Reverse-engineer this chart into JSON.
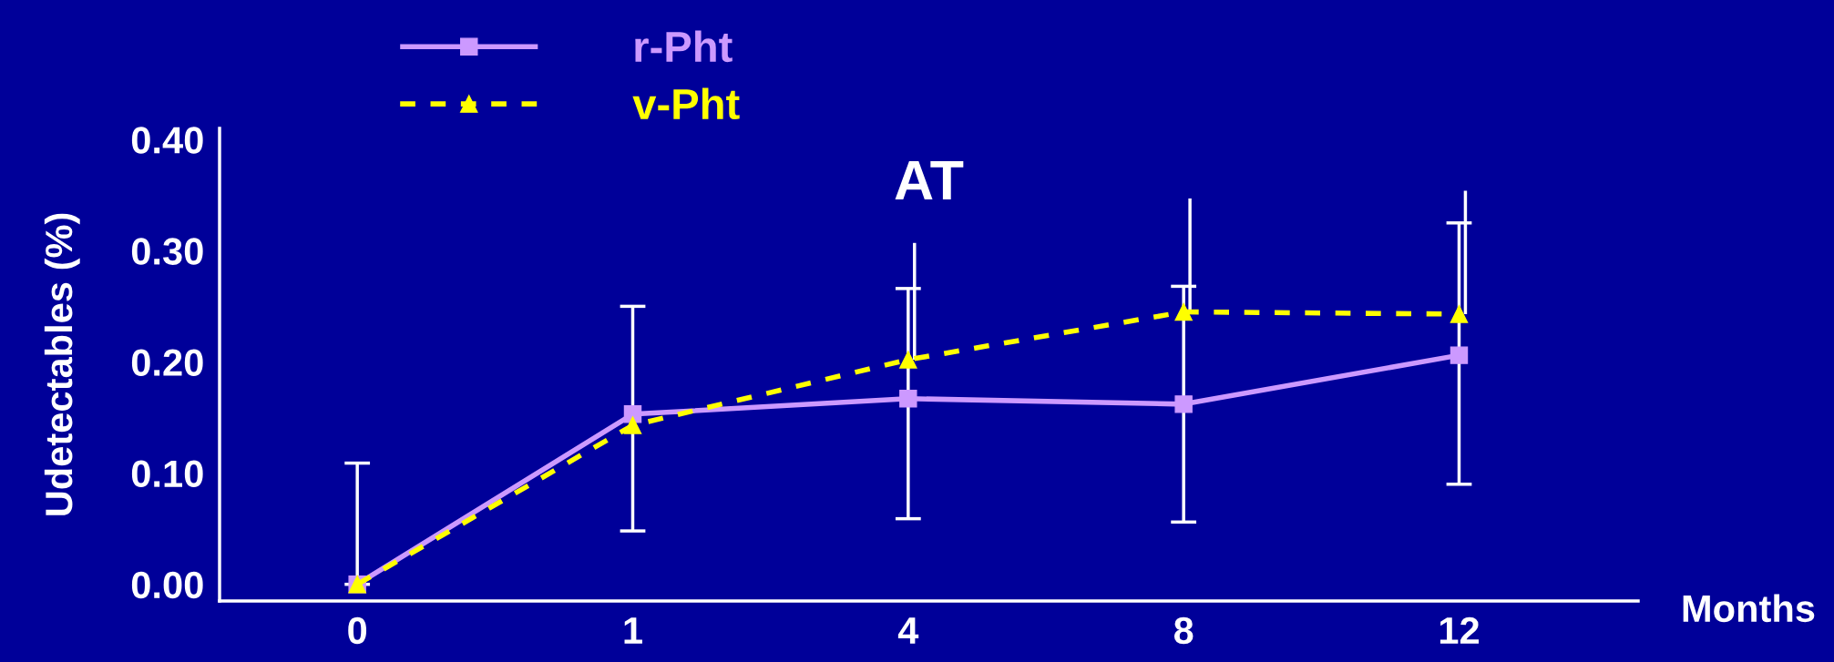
{
  "chart_data": {
    "type": "line",
    "title": "AT",
    "xlabel": "Months",
    "ylabel": "Udetectables (%)",
    "categories": [
      "0",
      "1",
      "4",
      "8",
      "12"
    ],
    "series": [
      {
        "name": "r-Pht",
        "color": "#cc99ff",
        "marker": "square",
        "line_style": "solid",
        "values": [
          0.0,
          0.153,
          0.167,
          0.162,
          0.206
        ],
        "errors": [
          [
            0.0,
            0.109
          ],
          [
            0.048,
            0.25
          ],
          [
            0.059,
            0.266
          ],
          [
            0.056,
            0.268
          ],
          [
            0.09,
            0.325
          ]
        ]
      },
      {
        "name": "v-Pht",
        "color": "#ffff00",
        "marker": "triangle",
        "line_style": "dashed",
        "values": [
          0.0,
          0.143,
          0.202,
          0.245,
          0.243
        ],
        "errors": [
          null,
          null,
          [
            0.202,
            0.307
          ],
          [
            0.245,
            0.347
          ],
          [
            0.243,
            0.354
          ]
        ]
      }
    ],
    "ylim": [
      -0.015,
      0.41
    ],
    "yticks": [
      {
        "value": 0,
        "label": "0.00"
      },
      {
        "value": 0.1,
        "label": "0.10"
      },
      {
        "value": 0.2,
        "label": "0.20"
      },
      {
        "value": 0.3,
        "label": "0.30"
      },
      {
        "value": 0.4,
        "label": "0.40"
      }
    ],
    "grid": false,
    "legend": "top left"
  }
}
